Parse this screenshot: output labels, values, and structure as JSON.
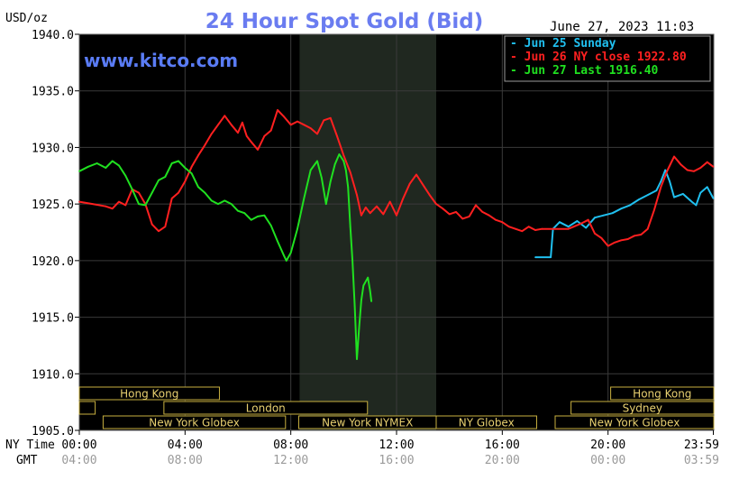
{
  "header": {
    "unit": "USD/oz",
    "title": "24 Hour Spot Gold (Bid)",
    "timestamp": "June 27, 2023 11:03"
  },
  "watermark": "www.kitco.com",
  "axis": {
    "x_left_label_ny": "NY Time",
    "x_left_label_gmt": "GMT",
    "ny_ticks": [
      "00:00",
      "04:00",
      "08:00",
      "12:00",
      "16:00",
      "20:00",
      "23:59"
    ],
    "gmt_ticks": [
      "04:00",
      "08:00",
      "12:00",
      "16:00",
      "20:00",
      "00:00",
      "03:59"
    ],
    "y_ticks": [
      "1940.0",
      "1935.0",
      "1930.0",
      "1925.0",
      "1920.0",
      "1915.0",
      "1910.0",
      "1905.0"
    ]
  },
  "legend": [
    {
      "label": "Jun 25 Sunday",
      "color": "#20c0f0"
    },
    {
      "label": "Jun 26 NY close 1922.80",
      "color": "#ff2020"
    },
    {
      "label": "Jun 27 Last 1916.40",
      "color": "#20e020"
    }
  ],
  "sessions": [
    {
      "label": "Hong Kong",
      "start_h": 0,
      "end_h": 5.3,
      "row": 0
    },
    {
      "label": "Hong Kong",
      "start_h": 20.1,
      "end_h": 24,
      "row": 0
    },
    {
      "label": "London",
      "start_h": 0,
      "end_h": 0.6,
      "row": 1
    },
    {
      "label": "London",
      "start_h": 3.2,
      "end_h": 10.9,
      "row": 1
    },
    {
      "label": "Sydney",
      "start_h": 18.6,
      "end_h": 24,
      "row": 1
    },
    {
      "label": "New York Globex",
      "start_h": 0.9,
      "end_h": 7.8,
      "row": 2
    },
    {
      "label": "New York NYMEX",
      "start_h": 8.3,
      "end_h": 13.5,
      "row": 2
    },
    {
      "label": "NY Globex",
      "start_h": 13.5,
      "end_h": 17.3,
      "row": 2
    },
    {
      "label": "New York Globex",
      "start_h": 18.0,
      "end_h": 24,
      "row": 2
    }
  ],
  "colors": {
    "background": "#000000",
    "grid": "#3a3a3a",
    "shaded_session": "#202820",
    "title": "#6a7cf0",
    "watermark": "#5a7cf5",
    "session_border": "#c8b040",
    "session_text": "#e8d070"
  },
  "chart_data": {
    "type": "line",
    "title": "24 Hour Spot Gold (Bid)",
    "xlabel": "NY Time",
    "ylabel": "USD/oz",
    "ylim": [
      1905.0,
      1940.0
    ],
    "xlim": [
      "00:00",
      "23:59"
    ],
    "grid": true,
    "legend_position": "top-right",
    "shaded_region_ny_time": [
      "08:20",
      "13:30"
    ],
    "series": [
      {
        "name": "Jun 25 Sunday",
        "color": "#20c0f0",
        "points": [
          [
            "17:15",
            1920.3
          ],
          [
            "17:50",
            1920.3
          ],
          [
            "17:55",
            1922.8
          ],
          [
            "18:10",
            1923.4
          ],
          [
            "18:30",
            1923.0
          ],
          [
            "18:50",
            1923.5
          ],
          [
            "19:10",
            1922.9
          ],
          [
            "19:30",
            1923.8
          ],
          [
            "19:50",
            1924.0
          ],
          [
            "20:10",
            1924.2
          ],
          [
            "20:30",
            1924.6
          ],
          [
            "20:50",
            1924.9
          ],
          [
            "21:10",
            1925.4
          ],
          [
            "21:30",
            1925.8
          ],
          [
            "21:50",
            1926.2
          ],
          [
            "22:00",
            1927.0
          ],
          [
            "22:10",
            1928.0
          ],
          [
            "22:20",
            1927.0
          ],
          [
            "22:30",
            1925.6
          ],
          [
            "22:50",
            1925.9
          ],
          [
            "23:10",
            1925.2
          ],
          [
            "23:20",
            1924.9
          ],
          [
            "23:30",
            1926.0
          ],
          [
            "23:45",
            1926.5
          ],
          [
            "23:59",
            1925.5
          ]
        ]
      },
      {
        "name": "Jun 26 NY close 1922.80",
        "color": "#ff2020",
        "points": [
          [
            "00:00",
            1925.2
          ],
          [
            "00:30",
            1925.0
          ],
          [
            "01:00",
            1924.8
          ],
          [
            "01:15",
            1924.6
          ],
          [
            "01:30",
            1925.2
          ],
          [
            "01:45",
            1924.9
          ],
          [
            "02:00",
            1926.3
          ],
          [
            "02:15",
            1926.0
          ],
          [
            "02:30",
            1925.0
          ],
          [
            "02:45",
            1923.2
          ],
          [
            "03:00",
            1922.6
          ],
          [
            "03:15",
            1923.0
          ],
          [
            "03:30",
            1925.5
          ],
          [
            "03:45",
            1926.0
          ],
          [
            "04:00",
            1927.0
          ],
          [
            "04:15",
            1928.3
          ],
          [
            "04:30",
            1929.3
          ],
          [
            "04:45",
            1930.2
          ],
          [
            "05:00",
            1931.2
          ],
          [
            "05:15",
            1932.0
          ],
          [
            "05:30",
            1932.8
          ],
          [
            "05:45",
            1932.0
          ],
          [
            "06:00",
            1931.3
          ],
          [
            "06:10",
            1932.2
          ],
          [
            "06:20",
            1931.0
          ],
          [
            "06:30",
            1930.5
          ],
          [
            "06:45",
            1929.8
          ],
          [
            "07:00",
            1931.0
          ],
          [
            "07:15",
            1931.5
          ],
          [
            "07:30",
            1933.3
          ],
          [
            "07:45",
            1932.7
          ],
          [
            "08:00",
            1932.0
          ],
          [
            "08:15",
            1932.3
          ],
          [
            "08:30",
            1932.0
          ],
          [
            "08:45",
            1931.7
          ],
          [
            "09:00",
            1931.2
          ],
          [
            "09:15",
            1932.4
          ],
          [
            "09:30",
            1932.6
          ],
          [
            "09:45",
            1931.0
          ],
          [
            "10:00",
            1929.3
          ],
          [
            "10:15",
            1927.8
          ],
          [
            "10:30",
            1925.8
          ],
          [
            "10:40",
            1924.0
          ],
          [
            "10:50",
            1924.7
          ],
          [
            "11:00",
            1924.2
          ],
          [
            "11:15",
            1924.8
          ],
          [
            "11:30",
            1924.1
          ],
          [
            "11:45",
            1925.2
          ],
          [
            "12:00",
            1924.0
          ],
          [
            "12:15",
            1925.5
          ],
          [
            "12:30",
            1926.8
          ],
          [
            "12:45",
            1927.6
          ],
          [
            "13:00",
            1926.7
          ],
          [
            "13:15",
            1925.8
          ],
          [
            "13:30",
            1925.0
          ],
          [
            "13:45",
            1924.6
          ],
          [
            "14:00",
            1924.1
          ],
          [
            "14:15",
            1924.3
          ],
          [
            "14:30",
            1923.7
          ],
          [
            "14:45",
            1923.9
          ],
          [
            "15:00",
            1924.9
          ],
          [
            "15:15",
            1924.3
          ],
          [
            "15:30",
            1924.0
          ],
          [
            "15:45",
            1923.6
          ],
          [
            "16:00",
            1923.4
          ],
          [
            "16:15",
            1923.0
          ],
          [
            "16:30",
            1922.8
          ],
          [
            "16:45",
            1922.6
          ],
          [
            "17:00",
            1923.0
          ],
          [
            "17:15",
            1922.7
          ],
          [
            "17:30",
            1922.8
          ],
          [
            "18:00",
            1922.8
          ],
          [
            "18:30",
            1922.8
          ],
          [
            "19:00",
            1923.3
          ],
          [
            "19:15",
            1923.6
          ],
          [
            "19:30",
            1922.4
          ],
          [
            "19:45",
            1922.0
          ],
          [
            "20:00",
            1921.3
          ],
          [
            "20:15",
            1921.6
          ],
          [
            "20:30",
            1921.8
          ],
          [
            "20:45",
            1921.9
          ],
          [
            "21:00",
            1922.2
          ],
          [
            "21:15",
            1922.3
          ],
          [
            "21:30",
            1922.8
          ],
          [
            "21:45",
            1924.5
          ],
          [
            "22:00",
            1926.5
          ],
          [
            "22:15",
            1928.0
          ],
          [
            "22:30",
            1929.2
          ],
          [
            "22:45",
            1928.5
          ],
          [
            "23:00",
            1928.0
          ],
          [
            "23:15",
            1927.9
          ],
          [
            "23:30",
            1928.2
          ],
          [
            "23:45",
            1928.7
          ],
          [
            "23:59",
            1928.3
          ]
        ]
      },
      {
        "name": "Jun 27 Last 1916.40",
        "color": "#20e020",
        "points": [
          [
            "00:00",
            1927.9
          ],
          [
            "00:20",
            1928.3
          ],
          [
            "00:40",
            1928.6
          ],
          [
            "01:00",
            1928.2
          ],
          [
            "01:15",
            1928.8
          ],
          [
            "01:30",
            1928.4
          ],
          [
            "01:45",
            1927.5
          ],
          [
            "02:00",
            1926.3
          ],
          [
            "02:15",
            1925.0
          ],
          [
            "02:30",
            1924.9
          ],
          [
            "02:45",
            1926.0
          ],
          [
            "03:00",
            1927.1
          ],
          [
            "03:15",
            1927.4
          ],
          [
            "03:30",
            1928.6
          ],
          [
            "03:45",
            1928.8
          ],
          [
            "04:00",
            1928.2
          ],
          [
            "04:15",
            1927.7
          ],
          [
            "04:30",
            1926.5
          ],
          [
            "04:45",
            1926.0
          ],
          [
            "05:00",
            1925.3
          ],
          [
            "05:15",
            1925.0
          ],
          [
            "05:30",
            1925.3
          ],
          [
            "05:45",
            1925.0
          ],
          [
            "06:00",
            1924.4
          ],
          [
            "06:15",
            1924.2
          ],
          [
            "06:30",
            1923.6
          ],
          [
            "06:45",
            1923.9
          ],
          [
            "07:00",
            1924.0
          ],
          [
            "07:15",
            1923.1
          ],
          [
            "07:30",
            1921.7
          ],
          [
            "07:45",
            1920.4
          ],
          [
            "07:50",
            1920.0
          ],
          [
            "08:00",
            1920.7
          ],
          [
            "08:15",
            1922.8
          ],
          [
            "08:30",
            1925.5
          ],
          [
            "08:45",
            1928.0
          ],
          [
            "09:00",
            1928.8
          ],
          [
            "09:10",
            1927.3
          ],
          [
            "09:20",
            1925.0
          ],
          [
            "09:30",
            1927.0
          ],
          [
            "09:40",
            1928.5
          ],
          [
            "09:50",
            1929.4
          ],
          [
            "10:00",
            1928.8
          ],
          [
            "10:05",
            1928.0
          ],
          [
            "10:10",
            1926.5
          ],
          [
            "10:15",
            1923.0
          ],
          [
            "10:20",
            1920.0
          ],
          [
            "10:25",
            1916.0
          ],
          [
            "10:30",
            1911.3
          ],
          [
            "10:35",
            1914.0
          ],
          [
            "10:40",
            1916.5
          ],
          [
            "10:45",
            1917.8
          ],
          [
            "10:55",
            1918.5
          ],
          [
            "11:00",
            1917.3
          ],
          [
            "11:03",
            1916.4
          ]
        ]
      }
    ]
  }
}
